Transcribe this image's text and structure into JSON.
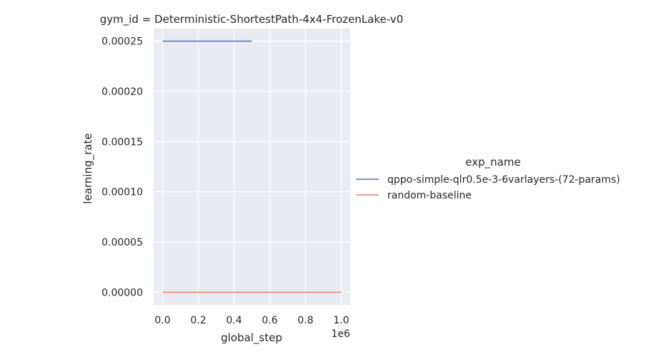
{
  "chart_data": {
    "type": "line",
    "title": "gym_id = Deterministic-ShortestPath-4x4-FrozenLake-v0",
    "xlabel": "global_step",
    "ylabel": "learning_rate",
    "x_offset_label": "1e6",
    "xlim": [
      -50000,
      1050000
    ],
    "ylim": [
      -1.25e-05,
      0.0002625
    ],
    "x_ticks": [
      0,
      200000,
      400000,
      600000,
      800000,
      1000000
    ],
    "x_tick_labels": [
      "0.0",
      "0.2",
      "0.4",
      "0.6",
      "0.8",
      "1.0"
    ],
    "y_ticks": [
      0,
      5e-05,
      0.0001,
      0.00015,
      0.0002,
      0.00025
    ],
    "y_tick_labels": [
      "0.00000",
      "0.00005",
      "0.00010",
      "0.00015",
      "0.00020",
      "0.00025"
    ],
    "grid": true,
    "legend_title": "exp_name",
    "legend_placement": "right",
    "series": [
      {
        "name": "qppo-simple-qlr0.5e-3-6varlayers-(72-params)",
        "color": "#4c72b0",
        "x": [
          0,
          500000
        ],
        "y": [
          0.00025,
          0.00025
        ]
      },
      {
        "name": "random-baseline",
        "color": "#dd8452",
        "x": [
          0,
          1000000
        ],
        "y": [
          0,
          0
        ]
      }
    ]
  }
}
